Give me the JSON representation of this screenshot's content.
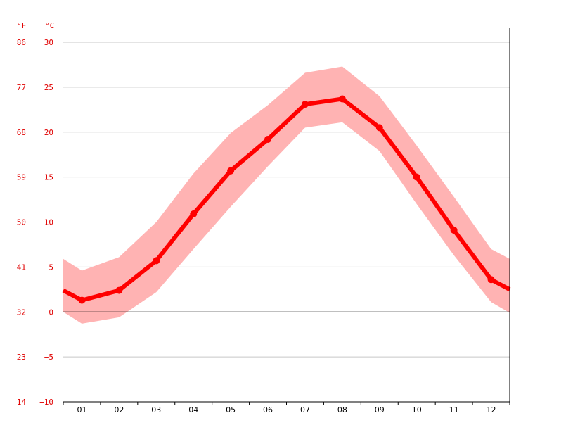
{
  "chart_data": {
    "type": "line",
    "title": "",
    "xlabel": "",
    "ylabel": "",
    "units": {
      "left": "°F",
      "right": "°C"
    },
    "categories": [
      "01",
      "02",
      "03",
      "04",
      "05",
      "06",
      "07",
      "08",
      "09",
      "10",
      "11",
      "12"
    ],
    "x_range": [
      0.5,
      12.5
    ],
    "ylim_c": [
      -10,
      30
    ],
    "yticks_c": [
      -10,
      -5,
      0,
      5,
      10,
      15,
      20,
      25,
      30
    ],
    "yticks_c_labels": [
      "−10",
      "−5",
      "0",
      "5",
      "10",
      "15",
      "20",
      "25",
      "30"
    ],
    "yticks_f": [
      "14",
      "23",
      "32",
      "41",
      "50",
      "59",
      "68",
      "77",
      "86"
    ],
    "grid": true,
    "series": [
      {
        "kind": "line",
        "color": "#ff0000",
        "x": [
          0.5,
          1,
          2,
          3,
          4,
          5,
          6,
          7,
          8,
          9,
          10,
          11,
          12,
          12.5
        ],
        "values": [
          2.4,
          1.3,
          2.4,
          5.7,
          10.9,
          15.7,
          19.2,
          23.1,
          23.7,
          20.5,
          15.0,
          9.1,
          3.6,
          2.5
        ]
      },
      {
        "kind": "band",
        "color": "#ffb3b3",
        "x": [
          0.5,
          1,
          2,
          3,
          4,
          5,
          6,
          7,
          8,
          9,
          10,
          11,
          12,
          12.5
        ],
        "upper": [
          5.9,
          4.6,
          6.1,
          10.0,
          15.4,
          19.9,
          23.0,
          26.6,
          27.3,
          24.0,
          18.5,
          12.8,
          7.0,
          5.9
        ],
        "lower": [
          0.0,
          -1.3,
          -0.6,
          2.2,
          7.0,
          11.7,
          16.2,
          20.5,
          21.1,
          17.9,
          12.0,
          6.3,
          1.1,
          -0.1
        ]
      }
    ]
  }
}
